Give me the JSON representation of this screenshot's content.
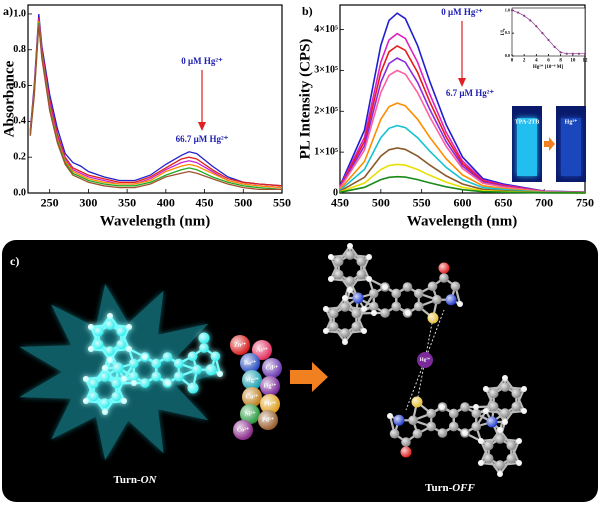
{
  "chart_data": [
    {
      "type": "line",
      "panel_label": "a)",
      "xlabel": "Wavelength (nm)",
      "ylabel": "Absorbance",
      "x": [
        225,
        230,
        236,
        240,
        250,
        260,
        270,
        280,
        290,
        300,
        320,
        340,
        360,
        380,
        400,
        420,
        430,
        440,
        460,
        480,
        500,
        520,
        550
      ],
      "series": [
        {
          "color": "#2222cc",
          "values": [
            0.35,
            0.6,
            1.0,
            0.82,
            0.55,
            0.36,
            0.22,
            0.17,
            0.15,
            0.12,
            0.09,
            0.07,
            0.07,
            0.1,
            0.16,
            0.21,
            0.23,
            0.22,
            0.15,
            0.09,
            0.06,
            0.05,
            0.04
          ]
        },
        {
          "color": "#e02020",
          "values": [
            0.34,
            0.58,
            0.98,
            0.8,
            0.52,
            0.33,
            0.2,
            0.14,
            0.12,
            0.1,
            0.08,
            0.06,
            0.06,
            0.09,
            0.14,
            0.19,
            0.2,
            0.19,
            0.13,
            0.08,
            0.06,
            0.05,
            0.04
          ]
        },
        {
          "color": "#cc22cc",
          "values": [
            0.33,
            0.57,
            0.97,
            0.78,
            0.5,
            0.31,
            0.19,
            0.13,
            0.11,
            0.09,
            0.07,
            0.05,
            0.05,
            0.08,
            0.13,
            0.17,
            0.18,
            0.17,
            0.12,
            0.07,
            0.05,
            0.04,
            0.03
          ]
        },
        {
          "color": "#ff8c00",
          "values": [
            0.33,
            0.56,
            0.96,
            0.77,
            0.48,
            0.3,
            0.18,
            0.12,
            0.1,
            0.08,
            0.06,
            0.05,
            0.05,
            0.07,
            0.12,
            0.15,
            0.16,
            0.15,
            0.11,
            0.07,
            0.05,
            0.04,
            0.03
          ]
        },
        {
          "color": "#22aa22",
          "values": [
            0.32,
            0.55,
            0.95,
            0.76,
            0.47,
            0.29,
            0.17,
            0.11,
            0.09,
            0.07,
            0.05,
            0.04,
            0.04,
            0.06,
            0.1,
            0.13,
            0.14,
            0.13,
            0.09,
            0.06,
            0.04,
            0.03,
            0.02
          ]
        },
        {
          "color": "#a0522d",
          "values": [
            0.32,
            0.54,
            0.94,
            0.75,
            0.46,
            0.28,
            0.16,
            0.1,
            0.08,
            0.06,
            0.04,
            0.03,
            0.03,
            0.05,
            0.09,
            0.11,
            0.12,
            0.11,
            0.08,
            0.05,
            0.03,
            0.02,
            0.02
          ]
        }
      ],
      "xlim": [
        222,
        550
      ],
      "xticks": [
        250,
        300,
        350,
        400,
        450,
        500,
        550
      ],
      "ylim": [
        0,
        1.05
      ],
      "yticks": [
        {
          "value": 0,
          "label": "0.0"
        },
        {
          "value": 0.2,
          "label": "0.2"
        },
        {
          "value": 0.4,
          "label": "0.4"
        },
        {
          "value": 0.6,
          "label": "0.6"
        },
        {
          "value": 0.8,
          "label": "0.8"
        },
        {
          "value": 1,
          "label": "1.0"
        }
      ],
      "annotations": [
        "0 μM Hg²⁺",
        "66.7 μM Hg²⁺"
      ]
    },
    {
      "type": "line",
      "panel_label": "b)",
      "xlabel": "Wavelength (nm)",
      "ylabel": "PL Intensity (CPS)",
      "x": [
        450,
        480,
        500,
        510,
        520,
        530,
        545,
        560,
        580,
        600,
        625,
        650,
        700,
        750
      ],
      "series": [
        {
          "color": "#1f1fd0",
          "values": [
            17600,
            154000,
            360800,
            422400,
            440000,
            426800,
            360800,
            272800,
            167200,
            88000,
            35200,
            22000,
            4400,
            2200
          ]
        },
        {
          "color": "#e020c0",
          "values": [
            15600,
            136500,
            319800,
            374400,
            390000,
            378300,
            319800,
            241800,
            148200,
            78000,
            31200,
            19500,
            3900,
            1950
          ]
        },
        {
          "color": "#e81c1c",
          "values": [
            14400,
            126000,
            295200,
            345600,
            360000,
            349200,
            295200,
            223200,
            136800,
            72000,
            28800,
            18000,
            3600,
            1800
          ]
        },
        {
          "color": "#8a2be2",
          "values": [
            13200,
            115500,
            270600,
            316800,
            330000,
            320100,
            270600,
            204600,
            125400,
            66000,
            26400,
            16500,
            3300,
            1650
          ]
        },
        {
          "color": "#ff5fa0",
          "values": [
            12000,
            105000,
            246000,
            288000,
            300000,
            291000,
            246000,
            186000,
            114000,
            60000,
            24000,
            15000,
            3000,
            1500
          ]
        },
        {
          "color": "#ff8c00",
          "values": [
            8800,
            77000,
            180400,
            211200,
            220000,
            213400,
            180400,
            136400,
            83600,
            44000,
            17600,
            11000,
            2200,
            1100
          ]
        },
        {
          "color": "#17c3d0",
          "values": [
            6600,
            57750,
            135300,
            158400,
            165000,
            160050,
            135300,
            102300,
            62700,
            33000,
            13200,
            8250,
            1650,
            825
          ]
        },
        {
          "color": "#8b5a2b",
          "values": [
            4400,
            38500,
            90200,
            105600,
            110000,
            106700,
            90200,
            68200,
            41800,
            22000,
            8800,
            5500,
            1100,
            550
          ]
        },
        {
          "color": "#e8e000",
          "values": [
            2800,
            24500,
            57400,
            67200,
            70000,
            67900,
            57400,
            43400,
            26600,
            14000,
            5600,
            3500,
            700,
            350
          ]
        },
        {
          "color": "#1a8a1a",
          "values": [
            1600,
            14000,
            32800,
            38400,
            40000,
            38800,
            32800,
            24800,
            15200,
            8000,
            3200,
            2000,
            400,
            200
          ]
        }
      ],
      "xlim": [
        450,
        750
      ],
      "xticks": [
        450,
        500,
        550,
        600,
        650,
        700,
        750
      ],
      "ylim": [
        0,
        460000
      ],
      "yticks": [
        0,
        {
          "value": 100000,
          "label": "1×10⁵"
        },
        {
          "value": 200000,
          "label": "2×10⁵"
        },
        {
          "value": 300000,
          "label": "3×10⁵"
        },
        {
          "value": 400000,
          "label": "4×10⁵"
        }
      ],
      "annotations": [
        "0 μM Hg²⁺",
        "6.7 μM Hg²⁺"
      ],
      "vial_labels": [
        "TPA-2TB",
        "Hg²⁺"
      ]
    },
    {
      "type": "line",
      "markers": true,
      "xlabel": "Hg²⁺ [10⁻⁶ M]",
      "ylabel": "I/I₀",
      "color": "#8b3a8b",
      "x": [
        0,
        1,
        2,
        3,
        4,
        5,
        6,
        7,
        8,
        9,
        10,
        11,
        12
      ],
      "values": [
        1.0,
        0.95,
        0.88,
        0.78,
        0.65,
        0.5,
        0.35,
        0.2,
        0.08,
        0.05,
        0.05,
        0.05,
        0.05
      ],
      "xlim": [
        0,
        12
      ],
      "xticks": [
        0,
        2,
        4,
        6,
        8,
        10,
        12
      ],
      "ylim": [
        0,
        1.05
      ],
      "yticks": [
        {
          "value": 0,
          "label": "0.0"
        },
        0.5,
        {
          "value": 1,
          "label": "1.0"
        }
      ]
    }
  ],
  "diagram": {
    "panel_label": "c)",
    "turn_on": {
      "prefix": "Turn-",
      "mode": "ON"
    },
    "turn_off": {
      "prefix": "Turn-",
      "mode": "OFF"
    },
    "center_ion": "Hg²⁺",
    "ions": [
      "Zn²⁺",
      "As³⁺",
      "Ba²⁺",
      "Cd²⁺",
      "Mg²⁺",
      "Hg²⁺",
      "Cu²⁺",
      "Pb²⁺",
      "Ni²⁺",
      "Pd²⁺",
      "Co²⁺"
    ]
  }
}
